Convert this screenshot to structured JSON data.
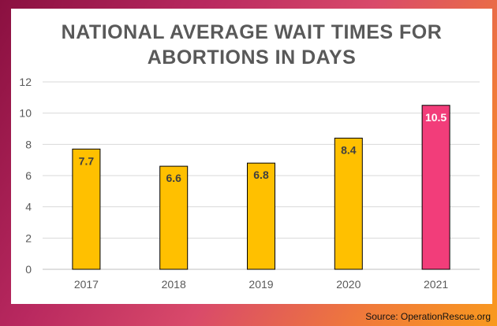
{
  "chart_data": {
    "type": "bar",
    "title_lines": [
      "NATIONAL AVERAGE WAIT TIMES FOR",
      "ABORTIONS IN DAYS"
    ],
    "categories": [
      "2017",
      "2018",
      "2019",
      "2020",
      "2021"
    ],
    "values": [
      7.7,
      6.6,
      6.8,
      8.4,
      10.5
    ],
    "data_labels": [
      "7.7",
      "6.6",
      "6.8",
      "8.4",
      "10.5"
    ],
    "bar_colors": [
      "#ffc000",
      "#ffc000",
      "#ffc000",
      "#ffc000",
      "#f23d7a"
    ],
    "data_label_colors": [
      "#404040",
      "#404040",
      "#404040",
      "#404040",
      "#ffffff"
    ],
    "ylim": [
      0,
      12
    ],
    "yticks": [
      "0",
      "2",
      "4",
      "6",
      "8",
      "10",
      "12"
    ],
    "grid": true,
    "legend": "none"
  },
  "source": "Source: OperationRescue.org"
}
